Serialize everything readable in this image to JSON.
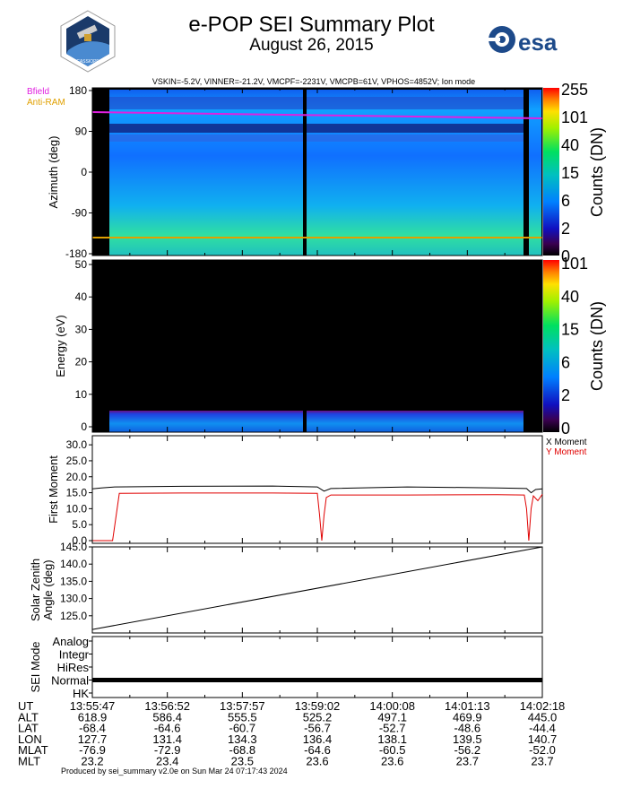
{
  "header": {
    "title": "e-POP SEI Summary Plot",
    "date": "August 26, 2015",
    "params": "VSKIN=-5.2V, VINNER=-21.2V, VMCPF=-2231V, VMCPB=61V, VPHOS=4852V; Ion mode",
    "logo_text": "esa"
  },
  "legend": {
    "bfield": "Bfield",
    "antiram": "Anti-RAM"
  },
  "colors": {
    "bfield": "#e020e0",
    "antiram": "#e0a000",
    "x_moment": "#000000",
    "y_moment": "#e00000"
  },
  "footer": "Produced by sei_summary v2.0e on Sun Mar 24 07:17:43 2024",
  "chart_data": [
    {
      "type": "heatmap",
      "name": "azimuth",
      "ylabel": "Azimuth (deg)",
      "ylim": [
        -180,
        180
      ],
      "y_ticks": [
        "180",
        "90",
        "0",
        "-90",
        "-180"
      ],
      "colorbar_label": "Counts (DN)",
      "colorbar_ticks": [
        "255",
        "101",
        "40",
        "15",
        "6",
        "2",
        "0"
      ]
    },
    {
      "type": "heatmap",
      "name": "energy",
      "ylabel": "Energy (eV)",
      "ylim": [
        0,
        50
      ],
      "y_ticks": [
        "50",
        "40",
        "30",
        "20",
        "10",
        "0"
      ],
      "colorbar_label": "Counts (DN)",
      "colorbar_ticks": [
        "101",
        "40",
        "15",
        "6",
        "2",
        "0"
      ]
    },
    {
      "type": "line",
      "name": "first-moment",
      "ylabel": "First Moment",
      "ylim": [
        0,
        32
      ],
      "y_ticks": [
        "30.0",
        "25.0",
        "20.0",
        "15.0",
        "10.0",
        "5.0",
        "0.0"
      ],
      "series": [
        {
          "name": "X Moment",
          "x": [
            0,
            0.02,
            0.05,
            0.2,
            0.4,
            0.5,
            0.515,
            0.53,
            0.7,
            0.9,
            0.965,
            0.975,
            0.985,
            1.0
          ],
          "values": [
            16.2,
            16.5,
            16.8,
            17.0,
            17.1,
            16.8,
            15.5,
            16.3,
            16.8,
            16.5,
            16.3,
            15.0,
            16.0,
            16.2
          ]
        },
        {
          "name": "Y Moment",
          "x": [
            0,
            0.045,
            0.06,
            0.2,
            0.4,
            0.5,
            0.505,
            0.51,
            0.515,
            0.52,
            0.53,
            0.7,
            0.9,
            0.96,
            0.965,
            0.97,
            0.975,
            0.98,
            0.99,
            1.0
          ],
          "values": [
            0.0,
            0.0,
            14.8,
            14.9,
            14.9,
            14.8,
            8.0,
            0.0,
            8.0,
            13.5,
            14.3,
            14.3,
            14.4,
            14.3,
            10.0,
            0.0,
            10.0,
            14.0,
            12.5,
            14.5
          ]
        }
      ]
    },
    {
      "type": "line",
      "name": "solar-zenith",
      "ylabel": "Solar Zenith Angle (deg)",
      "ylim": [
        120,
        145
      ],
      "y_ticks": [
        "145.0",
        "140.0",
        "135.0",
        "130.0",
        "125.0"
      ],
      "series": [
        {
          "x": [
            0,
            1
          ],
          "values": [
            121.0,
            145.0
          ]
        }
      ]
    },
    {
      "type": "line",
      "name": "sei-mode",
      "ylabel": "SEI Mode",
      "y_ticks": [
        "Analog",
        "Integr",
        "HiRes",
        "Normal",
        "HK"
      ],
      "series": [
        {
          "x": [
            0,
            1
          ],
          "values": [
            "Normal",
            "Normal"
          ]
        }
      ]
    },
    {
      "type": "table",
      "name": "ephemeris",
      "rows": [
        {
          "label": "UT",
          "values": [
            "13:55:47",
            "13:56:52",
            "13:57:57",
            "13:59:02",
            "14:00:08",
            "14:01:13",
            "14:02:18"
          ]
        },
        {
          "label": "ALT",
          "values": [
            "618.9",
            "586.4",
            "555.5",
            "525.2",
            "497.1",
            "469.9",
            "445.0"
          ]
        },
        {
          "label": "LAT",
          "values": [
            "-68.4",
            "-64.6",
            "-60.7",
            "-56.7",
            "-52.7",
            "-48.6",
            "-44.4"
          ]
        },
        {
          "label": "LON",
          "values": [
            "127.7",
            "131.4",
            "134.3",
            "136.4",
            "138.1",
            "139.5",
            "140.7"
          ]
        },
        {
          "label": "MLAT",
          "values": [
            "-76.9",
            "-72.9",
            "-68.8",
            "-64.6",
            "-60.5",
            "-56.2",
            "-52.0"
          ]
        },
        {
          "label": "MLT",
          "values": [
            "23.2",
            "23.4",
            "23.5",
            "23.6",
            "23.6",
            "23.7",
            "23.7"
          ]
        }
      ]
    }
  ]
}
